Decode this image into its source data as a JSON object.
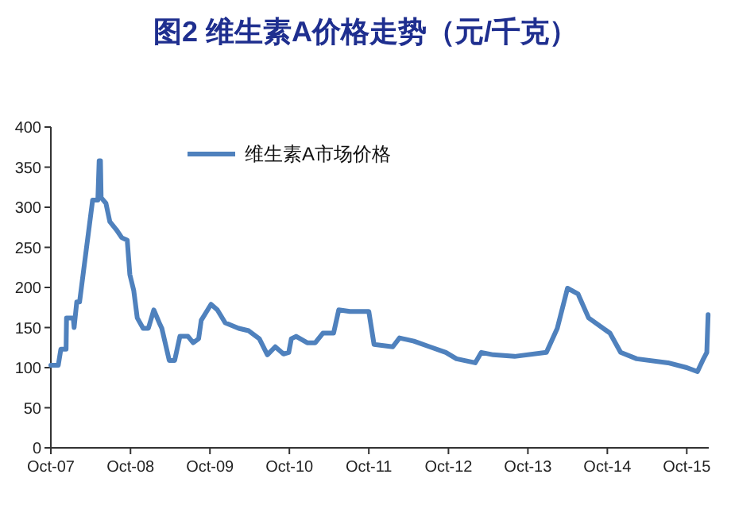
{
  "chart_data": {
    "type": "line",
    "title": "图2  维生素A价格走势（元/千克）",
    "x": [
      "2007-10-01",
      "2007-11-04",
      "2007-11-16",
      "2007-12-10",
      "2007-12-12",
      "2008-01-12",
      "2008-01-16",
      "2008-01-28",
      "2008-02-10",
      "2008-04-10",
      "2008-05-04",
      "2008-05-10",
      "2008-05-16",
      "2008-05-19",
      "2008-06-10",
      "2008-06-28",
      "2008-07-28",
      "2008-08-22",
      "2008-09-16",
      "2008-09-28",
      "2008-10-16",
      "2008-11-01",
      "2008-11-28",
      "2008-12-22",
      "2009-01-16",
      "2009-02-10",
      "2009-02-22",
      "2009-03-28",
      "2009-04-22",
      "2009-05-16",
      "2009-06-22",
      "2009-07-16",
      "2009-08-10",
      "2009-08-22",
      "2009-10-06",
      "2009-11-04",
      "2009-12-10",
      "2010-02-10",
      "2010-03-28",
      "2010-05-16",
      "2010-06-22",
      "2010-07-28",
      "2010-09-04",
      "2010-09-28",
      "2010-10-10",
      "2010-11-01",
      "2010-12-22",
      "2011-01-28",
      "2011-03-04",
      "2011-04-22",
      "2011-05-16",
      "2011-07-06",
      "2011-10-01",
      "2011-10-25",
      "2012-01-19",
      "2012-02-19",
      "2012-04-25",
      "2012-07-07",
      "2012-09-19",
      "2012-11-07",
      "2013-02-01",
      "2013-03-01",
      "2013-04-25",
      "2013-08-01",
      "2013-12-25",
      "2014-02-13",
      "2014-04-01",
      "2014-05-19",
      "2014-07-07",
      "2014-10-13",
      "2014-12-01",
      "2015-02-13",
      "2015-07-07",
      "2015-10-01",
      "2015-11-19",
      "2015-12-13",
      "2016-01-01",
      "2016-01-07"
    ],
    "series": [
      {
        "name": "维生素A市场价格",
        "color": "#4f81bd",
        "values": [
          103,
          103,
          123,
          123,
          162,
          162,
          150,
          182,
          182,
          309,
          309,
          358,
          358,
          312,
          305,
          282,
          272,
          262,
          259,
          216,
          196,
          162,
          149,
          149,
          172,
          156,
          149,
          109,
          109,
          139,
          139,
          131,
          136,
          159,
          179,
          172,
          156,
          149,
          146,
          136,
          116,
          126,
          117,
          119,
          136,
          139,
          131,
          131,
          143,
          143,
          172,
          170,
          170,
          129,
          126,
          137,
          133,
          126,
          119,
          111,
          106,
          119,
          116,
          114,
          119,
          149,
          199,
          192,
          162,
          143,
          119,
          111,
          106,
          100,
          95,
          109,
          119,
          166
        ]
      }
    ],
    "xlim": [
      "2007-10-01",
      "2016-01-10"
    ],
    "xticks": [
      {
        "value": "2007-10-01",
        "label": "Oct-07"
      },
      {
        "value": "2008-10-01",
        "label": "Oct-08"
      },
      {
        "value": "2009-10-01",
        "label": "Oct-09"
      },
      {
        "value": "2010-10-01",
        "label": "Oct-10"
      },
      {
        "value": "2011-10-01",
        "label": "Oct-11"
      },
      {
        "value": "2012-10-01",
        "label": "Oct-12"
      },
      {
        "value": "2013-10-01",
        "label": "Oct-13"
      },
      {
        "value": "2014-10-01",
        "label": "Oct-14"
      },
      {
        "value": "2015-10-01",
        "label": "Oct-15"
      }
    ],
    "ylim": [
      0,
      400
    ],
    "yticks": [
      0,
      50,
      100,
      150,
      200,
      250,
      300,
      350,
      400
    ],
    "legend": "top",
    "grid": false,
    "marker": "none",
    "line_style": "solid"
  }
}
